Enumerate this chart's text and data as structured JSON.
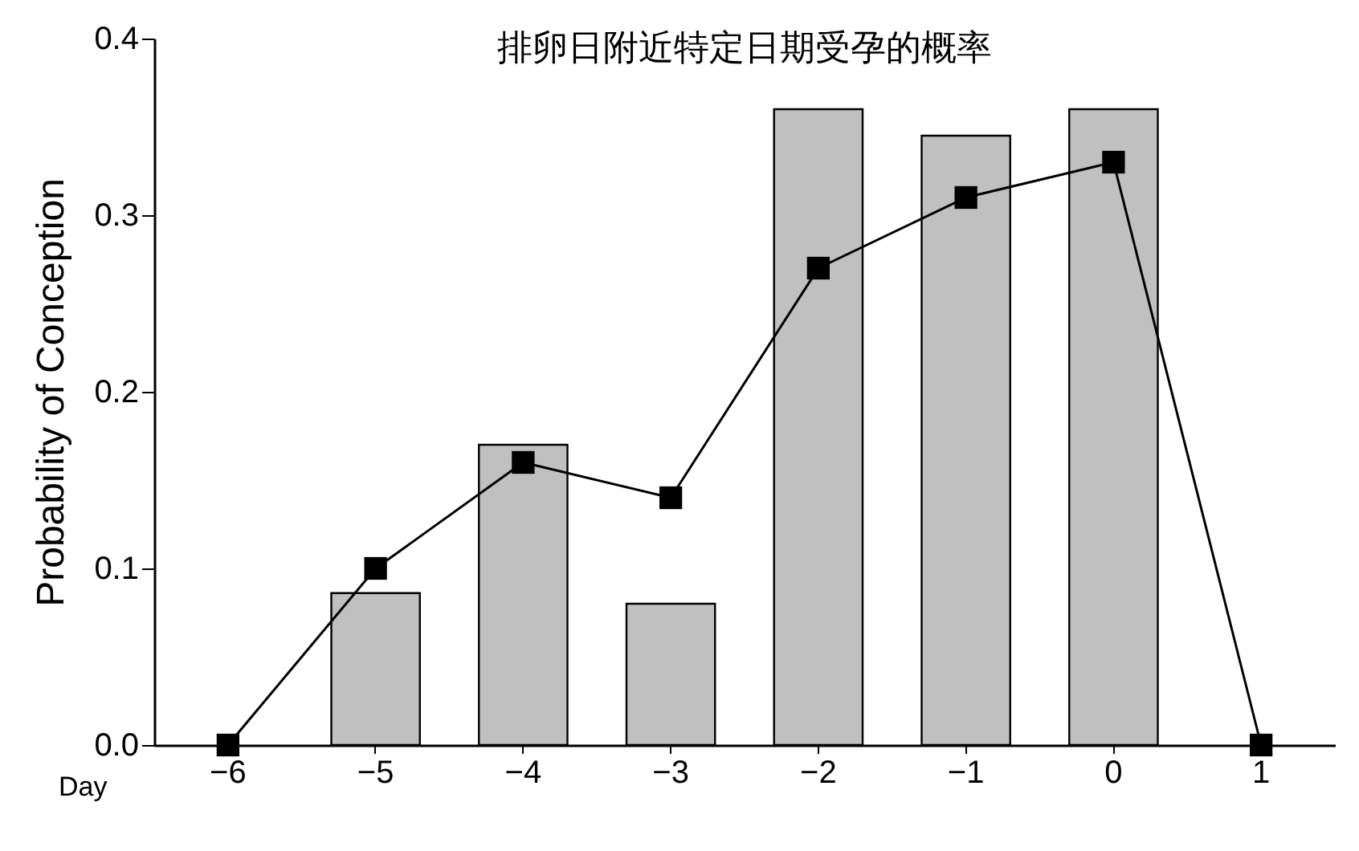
{
  "chart_data": {
    "type": "bar",
    "title": "排卵日附近特定日期受孕的概率",
    "xlabel": "Day",
    "ylabel": "Probability of Conception",
    "categories": [
      "−6",
      "−5",
      "−4",
      "−3",
      "−2",
      "−1",
      "0",
      "1"
    ],
    "series": [
      {
        "color": "#c0c0c0",
        "values": [
          null,
          0.086,
          0.17,
          0.08,
          0.36,
          0.345,
          0.36,
          null
        ]
      },
      {
        "type": "line",
        "color": "#000000",
        "values": [
          0,
          0.1,
          0.16,
          0.14,
          0.27,
          0.31,
          0.33,
          0
        ]
      }
    ],
    "ylim": [
      0,
      0.4
    ],
    "yticks": [
      {
        "value": 0,
        "label": "0.0"
      },
      {
        "value": 0.1,
        "label": "0.1"
      },
      {
        "value": 0.2,
        "label": "0.2"
      },
      {
        "value": 0.3,
        "label": "0.3"
      },
      {
        "value": 0.4,
        "label": "0.4"
      }
    ],
    "grid": false,
    "marker": "square",
    "line_style": "solid"
  }
}
